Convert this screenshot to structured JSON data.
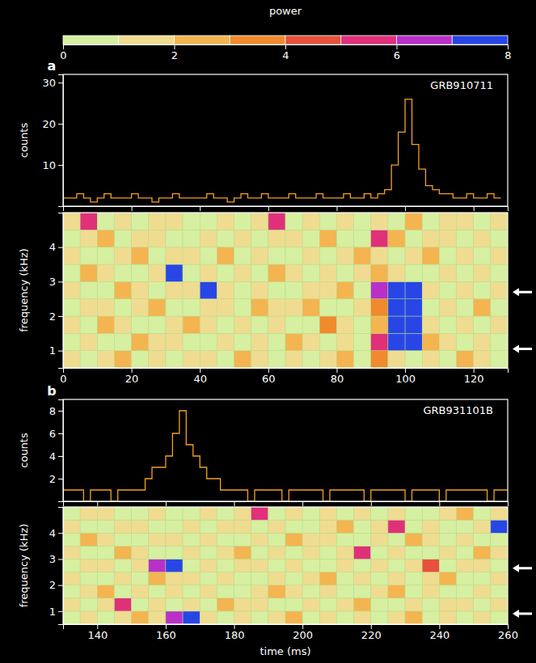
{
  "colorbar": {
    "label": "power",
    "range": [
      0,
      8
    ],
    "ticks": [
      0,
      2,
      4,
      6,
      8
    ],
    "colors": [
      "#d6efa0",
      "#efdc90",
      "#f4b450",
      "#f08a2c",
      "#e8503c",
      "#e0307a",
      "#b830c8",
      "#2846e6"
    ]
  },
  "chart_data": [
    {
      "type": "line",
      "panel": "a",
      "title": "GRB910711",
      "ylabel": "counts",
      "color": "#f5a020",
      "x": [
        0,
        2,
        4,
        6,
        8,
        10,
        12,
        14,
        16,
        18,
        20,
        22,
        24,
        26,
        28,
        30,
        32,
        34,
        36,
        38,
        40,
        42,
        44,
        46,
        48,
        50,
        52,
        54,
        56,
        58,
        60,
        62,
        64,
        66,
        68,
        70,
        72,
        74,
        76,
        78,
        80,
        82,
        84,
        86,
        88,
        90,
        92,
        94,
        96,
        98,
        100,
        102,
        104,
        106,
        108,
        110,
        112,
        114,
        116,
        118,
        120,
        122,
        124,
        126,
        128
      ],
      "values": [
        2,
        2,
        3,
        2,
        1,
        2,
        3,
        2,
        2,
        2,
        3,
        2,
        2,
        1,
        2,
        2,
        3,
        2,
        2,
        2,
        2,
        3,
        2,
        2,
        1,
        2,
        3,
        2,
        2,
        3,
        2,
        2,
        2,
        3,
        2,
        2,
        2,
        3,
        2,
        2,
        2,
        3,
        2,
        2,
        3,
        2,
        3,
        4,
        10,
        18,
        26,
        15,
        9,
        5,
        4,
        3,
        3,
        2,
        2,
        3,
        2,
        2,
        3,
        2,
        2
      ],
      "xlim": [
        0,
        130
      ],
      "xticks": [
        0,
        20,
        40,
        60,
        80,
        100,
        120
      ],
      "ylim": [
        0,
        32
      ],
      "yticks": [
        10,
        20,
        30
      ],
      "tick_labels": "y"
    },
    {
      "type": "heatmap",
      "ylabel": "frequency (kHz)",
      "arrow_frequencies": [
        2.7,
        1.05
      ],
      "xbins": [
        0,
        5,
        10,
        15,
        20,
        25,
        30,
        35,
        40,
        45,
        50,
        55,
        60,
        65,
        70,
        75,
        80,
        85,
        90,
        95,
        100,
        105,
        110,
        115,
        120,
        125,
        130
      ],
      "ybins": [
        0.5,
        1.0,
        1.5,
        2.0,
        2.5,
        3.0,
        3.5,
        4.0,
        4.5,
        5.0
      ],
      "z": [
        [
          1,
          0,
          1,
          2,
          0,
          1,
          0,
          1,
          1,
          0,
          2,
          1,
          0,
          1,
          0,
          1,
          2,
          0,
          3,
          1,
          0,
          1,
          0,
          2,
          1,
          0
        ],
        [
          0,
          1,
          0,
          0,
          2,
          1,
          1,
          0,
          0,
          1,
          0,
          1,
          0,
          2,
          1,
          0,
          1,
          0,
          5,
          8,
          8,
          2,
          1,
          0,
          1,
          0
        ],
        [
          1,
          0,
          2,
          1,
          0,
          0,
          1,
          2,
          1,
          0,
          1,
          0,
          1,
          0,
          0,
          3,
          1,
          0,
          2,
          7,
          7,
          1,
          0,
          1,
          0,
          1
        ],
        [
          0,
          1,
          1,
          0,
          1,
          2,
          0,
          0,
          1,
          1,
          0,
          2,
          1,
          1,
          2,
          0,
          0,
          1,
          3,
          7,
          7,
          0,
          1,
          0,
          2,
          0
        ],
        [
          1,
          0,
          0,
          2,
          1,
          0,
          1,
          1,
          7,
          1,
          0,
          1,
          0,
          0,
          1,
          1,
          2,
          0,
          6,
          8,
          8,
          1,
          0,
          1,
          0,
          1
        ],
        [
          0,
          2,
          1,
          0,
          0,
          1,
          7,
          0,
          1,
          0,
          1,
          0,
          2,
          1,
          0,
          1,
          0,
          1,
          2,
          1,
          0,
          0,
          1,
          0,
          1,
          0
        ],
        [
          1,
          0,
          0,
          1,
          2,
          0,
          1,
          1,
          0,
          2,
          0,
          1,
          0,
          0,
          1,
          0,
          1,
          2,
          1,
          0,
          1,
          2,
          0,
          1,
          0,
          1
        ],
        [
          0,
          1,
          2,
          0,
          1,
          1,
          0,
          0,
          1,
          0,
          1,
          0,
          1,
          1,
          0,
          2,
          0,
          0,
          5,
          2,
          0,
          1,
          1,
          0,
          1,
          0
        ],
        [
          1,
          5,
          0,
          1,
          0,
          1,
          1,
          0,
          0,
          1,
          0,
          1,
          5,
          0,
          1,
          0,
          1,
          0,
          1,
          0,
          2,
          0,
          1,
          1,
          0,
          1
        ]
      ],
      "xlim": [
        0,
        130
      ],
      "xticks": [
        0,
        20,
        40,
        60,
        80,
        100,
        120
      ],
      "ylim": [
        0.5,
        5
      ],
      "yticks": [
        1,
        2,
        3,
        4
      ]
    },
    {
      "type": "line",
      "panel": "b",
      "title": "GRB931101B",
      "ylabel": "counts",
      "color": "#f5a020",
      "x": [
        130,
        132,
        134,
        136,
        138,
        140,
        142,
        144,
        146,
        148,
        150,
        152,
        154,
        156,
        158,
        160,
        162,
        164,
        166,
        168,
        170,
        172,
        174,
        176,
        178,
        180,
        182,
        184,
        186,
        188,
        190,
        192,
        194,
        196,
        198,
        200,
        202,
        204,
        206,
        208,
        210,
        212,
        214,
        216,
        218,
        220,
        222,
        224,
        226,
        228,
        230,
        232,
        234,
        236,
        238,
        240,
        242,
        244,
        246,
        248,
        250,
        252,
        254,
        256,
        258,
        260
      ],
      "values": [
        1,
        1,
        1,
        0,
        1,
        1,
        1,
        0,
        1,
        1,
        1,
        1,
        2,
        3,
        3,
        4,
        6,
        8,
        5,
        4,
        3,
        2,
        2,
        1,
        1,
        1,
        1,
        0,
        1,
        1,
        1,
        1,
        0,
        1,
        1,
        1,
        1,
        1,
        0,
        1,
        1,
        1,
        1,
        1,
        0,
        1,
        1,
        1,
        1,
        1,
        0,
        1,
        1,
        1,
        1,
        0,
        1,
        1,
        1,
        1,
        1,
        1,
        0,
        1,
        1,
        1
      ],
      "xlim": [
        130,
        260
      ],
      "xticks": [
        140,
        160,
        180,
        200,
        220,
        240,
        260
      ],
      "ylim": [
        0,
        9
      ],
      "yticks": [
        2,
        4,
        6,
        8
      ],
      "tick_labels": "y"
    },
    {
      "type": "heatmap",
      "ylabel": "frequency (kHz)",
      "xlabel": "time (ms)",
      "arrow_frequencies": [
        2.65,
        0.9
      ],
      "xbins": [
        130,
        135,
        140,
        145,
        150,
        155,
        160,
        165,
        170,
        175,
        180,
        185,
        190,
        195,
        200,
        205,
        210,
        215,
        220,
        225,
        230,
        235,
        240,
        245,
        250,
        255,
        260
      ],
      "ybins": [
        0.5,
        1.0,
        1.5,
        2.0,
        2.5,
        3.0,
        3.5,
        4.0,
        4.5,
        5.0
      ],
      "z": [
        [
          0,
          1,
          0,
          1,
          2,
          1,
          6,
          8,
          1,
          0,
          1,
          0,
          1,
          2,
          0,
          1,
          0,
          1,
          0,
          1,
          2,
          0,
          1,
          0,
          1,
          0
        ],
        [
          1,
          0,
          1,
          5,
          0,
          1,
          0,
          1,
          0,
          2,
          1,
          1,
          0,
          0,
          1,
          0,
          1,
          2,
          0,
          0,
          1,
          0,
          1,
          1,
          0,
          1
        ],
        [
          0,
          1,
          2,
          0,
          1,
          0,
          1,
          0,
          1,
          0,
          0,
          1,
          2,
          1,
          0,
          1,
          0,
          0,
          1,
          2,
          0,
          1,
          0,
          0,
          1,
          0
        ],
        [
          1,
          0,
          0,
          1,
          0,
          2,
          1,
          1,
          0,
          1,
          0,
          0,
          1,
          0,
          1,
          2,
          0,
          1,
          0,
          1,
          0,
          1,
          2,
          0,
          0,
          1
        ],
        [
          0,
          1,
          1,
          0,
          1,
          6,
          8,
          0,
          1,
          0,
          1,
          1,
          0,
          1,
          0,
          0,
          1,
          0,
          1,
          0,
          1,
          4,
          0,
          1,
          1,
          0
        ],
        [
          1,
          0,
          0,
          2,
          1,
          0,
          0,
          1,
          0,
          1,
          2,
          0,
          1,
          0,
          1,
          0,
          1,
          5,
          0,
          1,
          0,
          0,
          1,
          0,
          2,
          1
        ],
        [
          0,
          2,
          1,
          0,
          0,
          1,
          1,
          0,
          1,
          0,
          0,
          1,
          0,
          2,
          1,
          1,
          0,
          0,
          1,
          0,
          2,
          1,
          0,
          1,
          0,
          0
        ],
        [
          1,
          0,
          0,
          1,
          1,
          0,
          0,
          1,
          0,
          1,
          1,
          0,
          1,
          0,
          0,
          1,
          2,
          0,
          1,
          5,
          0,
          1,
          0,
          0,
          1,
          7
        ],
        [
          0,
          1,
          1,
          0,
          0,
          1,
          0,
          0,
          1,
          0,
          1,
          5,
          0,
          1,
          0,
          1,
          0,
          1,
          0,
          1,
          0,
          0,
          1,
          2,
          0,
          1
        ]
      ],
      "xlim": [
        130,
        260
      ],
      "xticks": [
        140,
        160,
        180,
        200,
        220,
        240,
        260
      ],
      "ylim": [
        0.5,
        5
      ],
      "yticks": [
        1,
        2,
        3,
        4
      ]
    }
  ]
}
